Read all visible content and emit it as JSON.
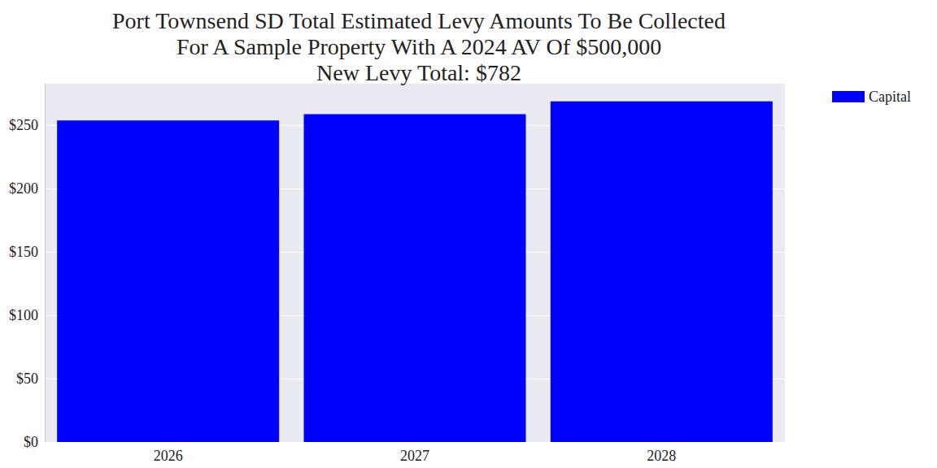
{
  "chart_data": {
    "type": "bar",
    "title": "Port Townsend SD Total Estimated Levy Amounts To Be Collected\nFor A Sample Property With A 2024 AV Of $500,000\nNew Levy Total: $782",
    "categories": [
      "2026",
      "2027",
      "2028"
    ],
    "series": [
      {
        "name": "Capital",
        "color": "#0000ff",
        "values": [
          254,
          259,
          269
        ]
      }
    ],
    "ylim": [
      0,
      283
    ],
    "yticks": [
      {
        "value": 0,
        "label": "$0"
      },
      {
        "value": 50,
        "label": "$50"
      },
      {
        "value": 100,
        "label": "$100"
      },
      {
        "value": 150,
        "label": "$150"
      },
      {
        "value": 200,
        "label": "$200"
      },
      {
        "value": 250,
        "label": "$250"
      }
    ],
    "grid": true,
    "legend": "upper right"
  }
}
